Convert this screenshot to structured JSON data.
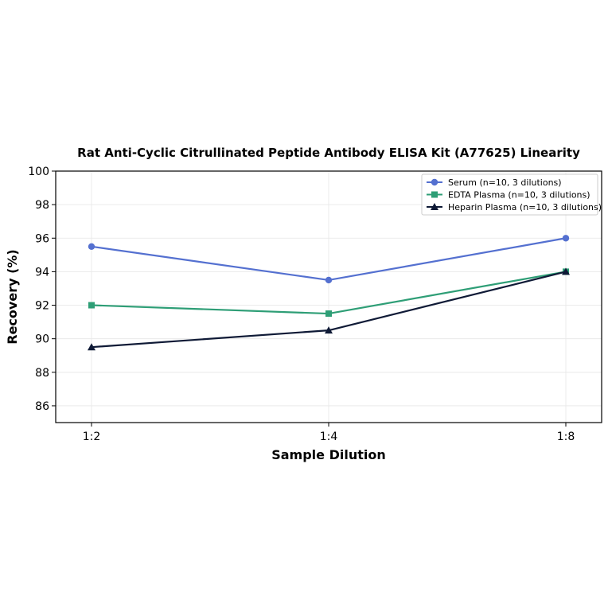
{
  "chart_data": {
    "type": "line",
    "title": "Rat Anti-Cyclic Citrullinated Peptide Antibody ELISA Kit (A77625) Linearity",
    "xlabel": "Sample Dilution",
    "ylabel": "Recovery (%)",
    "categories": [
      "1:2",
      "1:4",
      "1:8"
    ],
    "ylim": [
      85,
      100
    ],
    "yticks": [
      86,
      88,
      90,
      92,
      94,
      96,
      98,
      100
    ],
    "grid": true,
    "legend_position": "top-right",
    "series": [
      {
        "name": "Serum (n=10, 3 dilutions)",
        "values": [
          95.5,
          93.5,
          96.0
        ],
        "color": "#5470d0",
        "marker": "circle"
      },
      {
        "name": "EDTA Plasma (n=10, 3 dilutions)",
        "values": [
          92.0,
          91.5,
          94.0
        ],
        "color": "#2e9e76",
        "marker": "square"
      },
      {
        "name": "Heparin Plasma (n=10, 3 dilutions)",
        "values": [
          89.5,
          90.5,
          94.0
        ],
        "color": "#0f1a36",
        "marker": "triangle"
      }
    ]
  }
}
